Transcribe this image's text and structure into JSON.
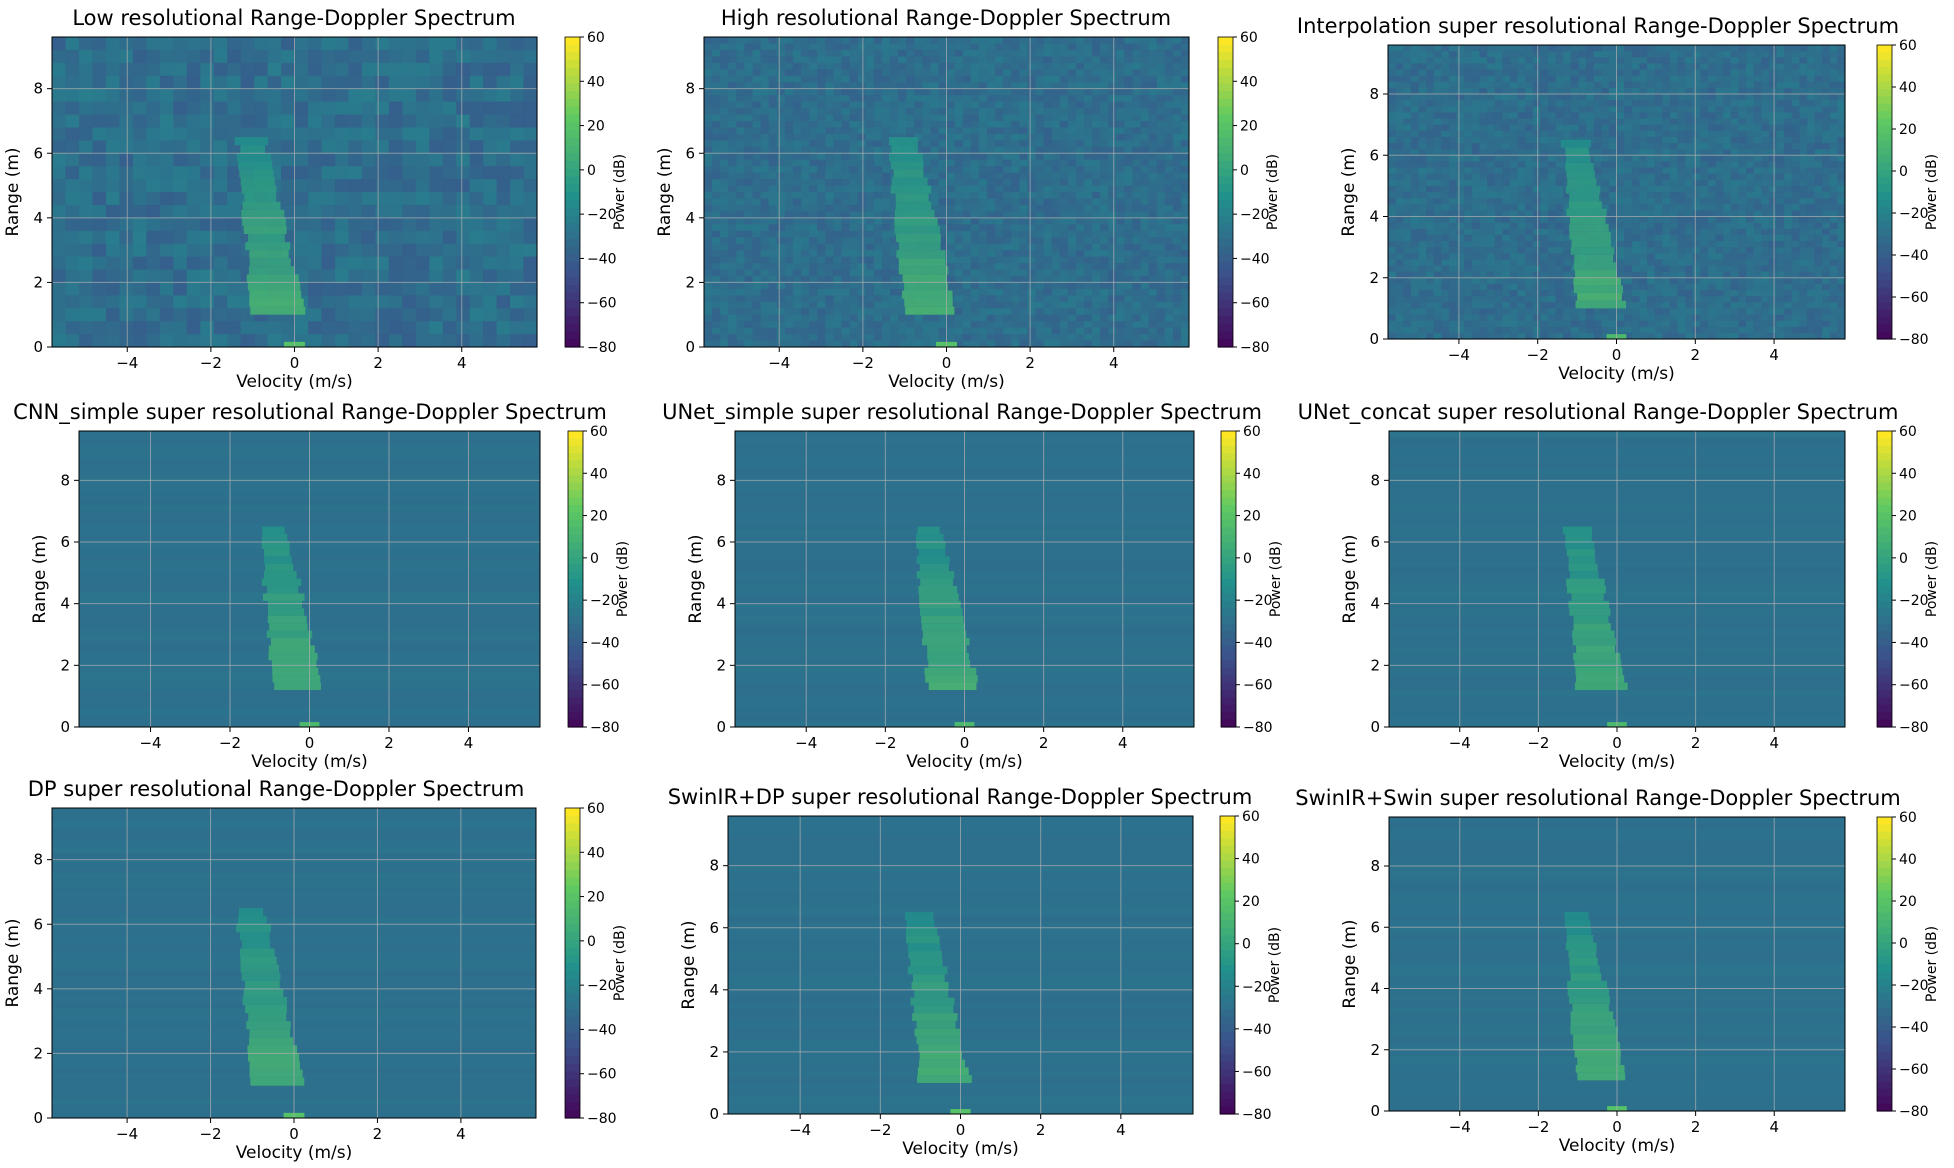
{
  "figure": {
    "colorbar_label": "Power (dB)",
    "colorbar_ticks": [
      60,
      40,
      20,
      0,
      -20,
      -40,
      -60,
      -80
    ],
    "colormap": [
      "#440154",
      "#3b528b",
      "#21918c",
      "#5ec962",
      "#fde725"
    ],
    "background_color": "#2c6f8e"
  },
  "chart_data": [
    {
      "type": "heatmap",
      "title": "Low resolutional Range-Doppler Spectrum",
      "xlabel": "Velocity (m/s)",
      "ylabel": "Range (m)",
      "xlim": [
        -5.8,
        5.8
      ],
      "ylim": [
        0,
        9.6
      ],
      "x_ticks": [
        -4,
        -2,
        0,
        2,
        4
      ],
      "y_ticks": [
        0,
        2,
        4,
        6,
        8
      ],
      "zlim": [
        -80,
        60
      ],
      "grid": true,
      "target_velocity_center": -0.4,
      "target_range_span": [
        1.0,
        6.5
      ],
      "zero_doppler_power_peak": 20
    },
    {
      "type": "heatmap",
      "title": "High resolutional Range-Doppler Spectrum",
      "xlabel": "Velocity (m/s)",
      "ylabel": "Range (m)",
      "xlim": [
        -5.8,
        5.8
      ],
      "ylim": [
        0,
        9.6
      ],
      "x_ticks": [
        -4,
        -2,
        0,
        2,
        4
      ],
      "y_ticks": [
        0,
        2,
        4,
        6,
        8
      ],
      "zlim": [
        -80,
        60
      ],
      "grid": true,
      "target_velocity_center": -0.4,
      "target_range_span": [
        1.0,
        6.5
      ],
      "zero_doppler_power_peak": 20
    },
    {
      "type": "heatmap",
      "title": "Interpolation super resolutional Range-Doppler Spectrum",
      "xlabel": "Velocity (m/s)",
      "ylabel": "Range (m)",
      "xlim": [
        -5.8,
        5.8
      ],
      "ylim": [
        0,
        9.6
      ],
      "x_ticks": [
        -4,
        -2,
        0,
        2,
        4
      ],
      "y_ticks": [
        0,
        2,
        4,
        6,
        8
      ],
      "zlim": [
        -80,
        60
      ],
      "grid": true,
      "target_velocity_center": -0.4,
      "target_range_span": [
        1.0,
        6.5
      ],
      "zero_doppler_power_peak": 15
    },
    {
      "type": "heatmap",
      "title": "CNN_simple super resolutional Range-Doppler Spectrum",
      "xlabel": "Velocity (m/s)",
      "ylabel": "Range (m)",
      "xlim": [
        -5.8,
        5.8
      ],
      "ylim": [
        0,
        9.6
      ],
      "x_ticks": [
        -4,
        -2,
        0,
        2,
        4
      ],
      "y_ticks": [
        0,
        2,
        4,
        6,
        8
      ],
      "zlim": [
        -80,
        60
      ],
      "grid": true,
      "target_velocity_center": -0.3,
      "target_range_span": [
        1.2,
        6.5
      ],
      "zero_doppler_power_peak": 15
    },
    {
      "type": "heatmap",
      "title": "UNet_simple super resolutional Range-Doppler Spectrum",
      "xlabel": "Velocity (m/s)",
      "ylabel": "Range (m)",
      "xlim": [
        -5.8,
        5.8
      ],
      "ylim": [
        0,
        9.6
      ],
      "x_ticks": [
        -4,
        -2,
        0,
        2,
        4
      ],
      "y_ticks": [
        0,
        2,
        4,
        6,
        8
      ],
      "zlim": [
        -80,
        60
      ],
      "grid": true,
      "target_velocity_center": -0.3,
      "target_range_span": [
        1.2,
        6.5
      ],
      "zero_doppler_power_peak": 15
    },
    {
      "type": "heatmap",
      "title": "UNet_concat super resolutional Range-Doppler Spectrum",
      "xlabel": "Velocity (m/s)",
      "ylabel": "Range (m)",
      "xlim": [
        -5.8,
        5.8
      ],
      "ylim": [
        0,
        9.6
      ],
      "x_ticks": [
        -4,
        -2,
        0,
        2,
        4
      ],
      "y_ticks": [
        0,
        2,
        4,
        6,
        8
      ],
      "zlim": [
        -80,
        60
      ],
      "grid": true,
      "target_velocity_center": -0.4,
      "target_range_span": [
        1.2,
        6.5
      ],
      "zero_doppler_power_peak": 15
    },
    {
      "type": "heatmap",
      "title": "DP super resolutional Range-Doppler Spectrum",
      "xlabel": "Velocity (m/s)",
      "ylabel": "Range (m)",
      "xlim": [
        -5.8,
        5.8
      ],
      "ylim": [
        0,
        9.6
      ],
      "x_ticks": [
        -4,
        -2,
        0,
        2,
        4
      ],
      "y_ticks": [
        0,
        2,
        4,
        6,
        8
      ],
      "zlim": [
        -80,
        60
      ],
      "grid": true,
      "target_velocity_center": -0.4,
      "target_range_span": [
        1.0,
        6.5
      ],
      "zero_doppler_power_peak": 20
    },
    {
      "type": "heatmap",
      "title": "SwinIR+DP super resolutional Range-Doppler Spectrum",
      "xlabel": "Velocity (m/s)",
      "ylabel": "Range (m)",
      "xlim": [
        -5.8,
        5.8
      ],
      "ylim": [
        0,
        9.6
      ],
      "x_ticks": [
        -4,
        -2,
        0,
        2,
        4
      ],
      "y_ticks": [
        0,
        2,
        4,
        6,
        8
      ],
      "zlim": [
        -80,
        60
      ],
      "grid": true,
      "target_velocity_center": -0.4,
      "target_range_span": [
        1.0,
        6.5
      ],
      "zero_doppler_power_peak": 20
    },
    {
      "type": "heatmap",
      "title": "SwinIR+Swin super resolutional Range-Doppler Spectrum",
      "xlabel": "Velocity (m/s)",
      "ylabel": "Range (m)",
      "xlim": [
        -5.8,
        5.8
      ],
      "ylim": [
        0,
        9.6
      ],
      "x_ticks": [
        -4,
        -2,
        0,
        2,
        4
      ],
      "y_ticks": [
        0,
        2,
        4,
        6,
        8
      ],
      "zlim": [
        -80,
        60
      ],
      "grid": true,
      "target_velocity_center": -0.4,
      "target_range_span": [
        1.0,
        6.5
      ],
      "zero_doppler_power_peak": 20
    }
  ]
}
